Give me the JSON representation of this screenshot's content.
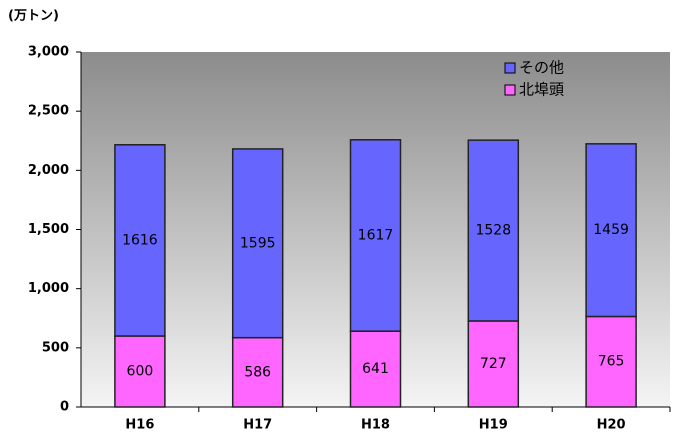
{
  "chart_data": {
    "type": "stacked_bar",
    "y_axis_label": "(万トン)",
    "categories": [
      "H16",
      "H17",
      "H18",
      "H19",
      "H20"
    ],
    "series": [
      {
        "name": "北埠頭",
        "color": "#ff66ff",
        "values": [
          600,
          586,
          641,
          727,
          765
        ]
      },
      {
        "name": "その他",
        "color": "#6666ff",
        "values": [
          1616,
          1595,
          1617,
          1528,
          1459
        ]
      }
    ],
    "ylim": [
      0,
      3000
    ],
    "yticks": [
      0,
      500,
      {
        "value": 1000,
        "label": "1,000"
      },
      {
        "value": 1500,
        "label": "1,500"
      },
      {
        "value": 2000,
        "label": "2,000"
      },
      {
        "value": 2500,
        "label": "2,500"
      },
      {
        "value": 3000,
        "label": "3,000"
      }
    ],
    "legend": "top-right"
  }
}
